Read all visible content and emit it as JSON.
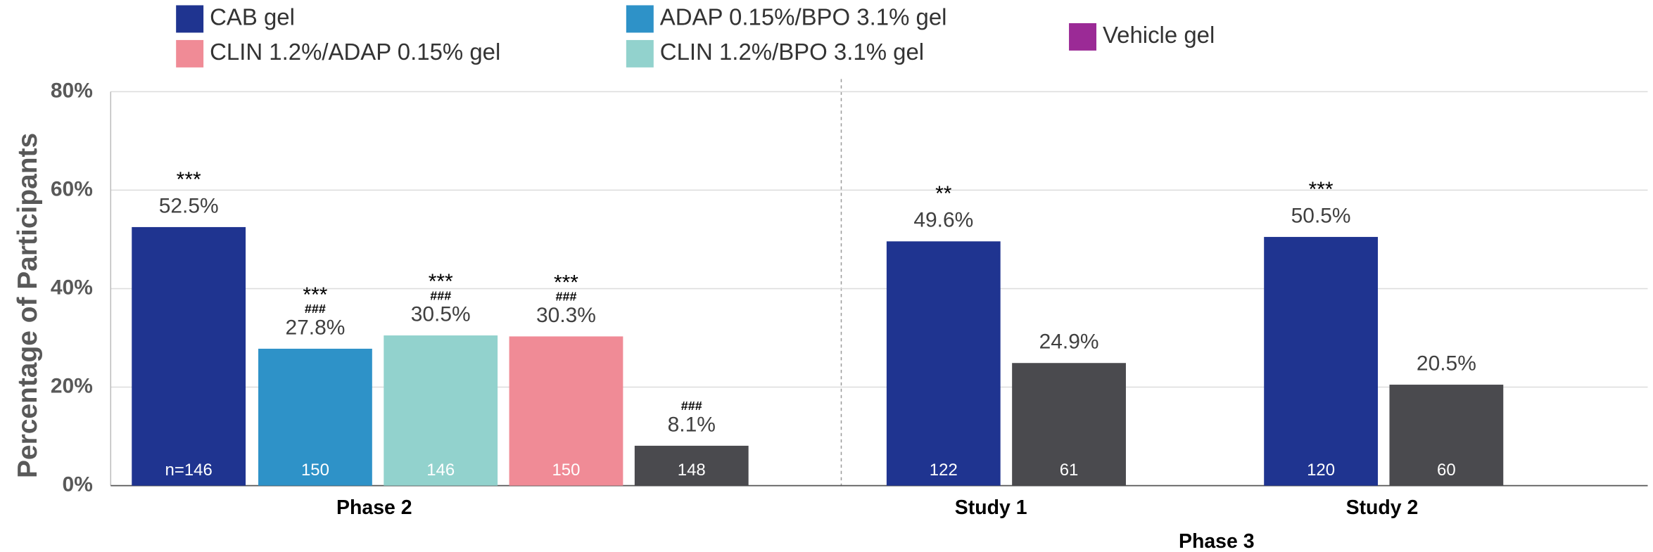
{
  "chart_data": {
    "type": "bar",
    "ylabel": "Percentage of Participants",
    "ylim": [
      0,
      80
    ],
    "yticks": [
      {
        "value": 0,
        "label": "0%"
      },
      {
        "value": 20,
        "label": "20%"
      },
      {
        "value": 40,
        "label": "40%"
      },
      {
        "value": 60,
        "label": "60%"
      },
      {
        "value": 80,
        "label": "80%"
      }
    ],
    "grid": true,
    "categories": [
      "Phase 2",
      "Study 1",
      "Study 2"
    ],
    "group_label": "Phase 3",
    "series": [
      {
        "name": "CAB gel",
        "color": "#1f3490",
        "values": [
          52.5,
          49.6,
          50.5
        ],
        "value_labels": [
          "52.5%",
          "49.6%",
          "50.5%"
        ],
        "n_labels": [
          "n=146",
          "122",
          "120"
        ],
        "significance": [
          "***",
          "**",
          "***"
        ],
        "vs_vehicle": [
          null,
          null,
          null
        ]
      },
      {
        "name": "ADAP 0.15%/BPO 3.1% gel",
        "color": "#2e92c8",
        "values": [
          27.8,
          null,
          null
        ],
        "value_labels": [
          "27.8%",
          null,
          null
        ],
        "n_labels": [
          "150",
          null,
          null
        ],
        "significance": [
          "***",
          null,
          null
        ],
        "vs_vehicle": [
          "###",
          null,
          null
        ]
      },
      {
        "name": "CLIN 1.2%/BPO 3.1% gel",
        "color": "#92d2cd",
        "values": [
          30.5,
          null,
          null
        ],
        "value_labels": [
          "30.5%",
          null,
          null
        ],
        "n_labels": [
          "146",
          null,
          null
        ],
        "significance": [
          "***",
          null,
          null
        ],
        "vs_vehicle": [
          "###",
          null,
          null
        ]
      },
      {
        "name": "CLIN 1.2%/ADAP 0.15% gel",
        "color": "#f08b96",
        "values": [
          30.3,
          null,
          null
        ],
        "value_labels": [
          "30.3%",
          null,
          null
        ],
        "n_labels": [
          "150",
          null,
          null
        ],
        "significance": [
          "***",
          null,
          null
        ],
        "vs_vehicle": [
          "###",
          null,
          null
        ]
      },
      {
        "name": "Vehicle gel",
        "color": "#9b2a96",
        "bar_color": "#4a4a4e",
        "values": [
          8.1,
          24.9,
          20.5
        ],
        "value_labels": [
          "8.1%",
          "24.9%",
          "20.5%"
        ],
        "n_labels": [
          "148",
          "61",
          "60"
        ],
        "significance": [
          null,
          null,
          null
        ],
        "vs_vehicle": [
          "###",
          null,
          null
        ]
      }
    ]
  }
}
